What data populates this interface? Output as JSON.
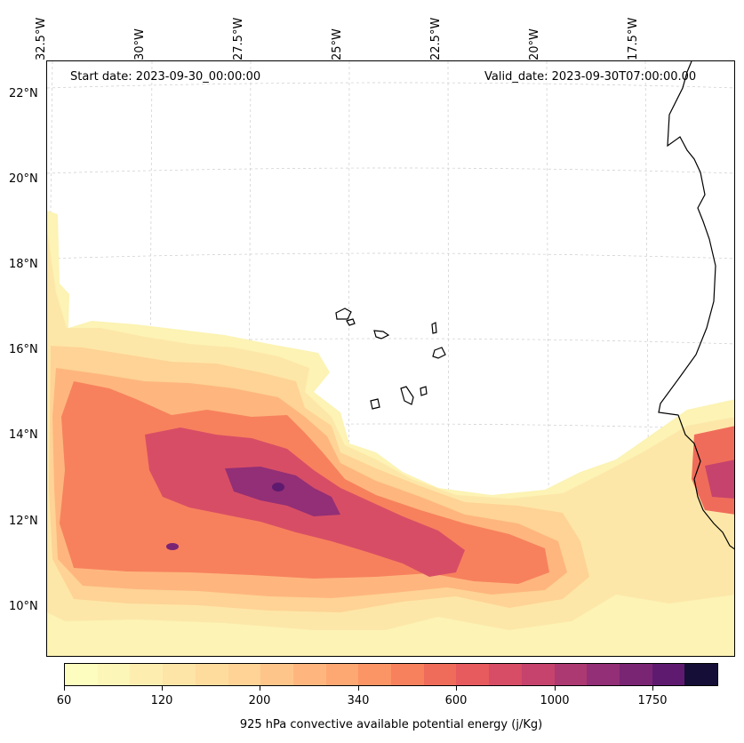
{
  "header": {
    "start_date": "Start date: 2023-09-30_00:00:00",
    "valid_date": "Valid_date: 2023-09-30T07:00:00.00"
  },
  "axes": {
    "longitude_labels": [
      "32.5°W",
      "30°W",
      "27.5°W",
      "25°W",
      "22.5°W",
      "20°W",
      "17.5°W"
    ],
    "latitude_labels": [
      "22°N",
      "20°N",
      "18°N",
      "16°N",
      "14°N",
      "12°N",
      "10°N"
    ]
  },
  "colorbar": {
    "tick_labels": [
      "60",
      "120",
      "200",
      "340",
      "600",
      "1000",
      "1750"
    ],
    "title": "925 hPa convective available potential energy (j/Kg)",
    "colors": [
      "#fcfdbf",
      "#fcf6b8",
      "#fdeeb0",
      "#fde5a7",
      "#fedc9e",
      "#fed395",
      "#fec58a",
      "#feb67e",
      "#fda772",
      "#fc9565",
      "#f7815d",
      "#f06c5a",
      "#e75a5e",
      "#d84d66",
      "#c5436d",
      "#ad3972",
      "#922f76",
      "#7a2574",
      "#5e1a6f",
      "#150e37"
    ]
  },
  "map": {
    "region": "Eastern tropical Atlantic, Cape Verde and West Africa coast",
    "field": "CAPE"
  }
}
